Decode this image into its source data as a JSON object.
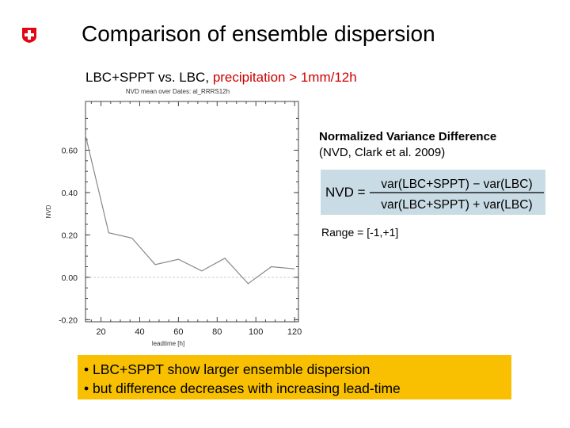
{
  "header": {
    "title": "Comparison of ensemble dispersion",
    "subtitle_black": "LBC+SPPT vs. LBC",
    "subtitle_sep": ",",
    "subtitle_red": "precipitation > 1mm/12h"
  },
  "colors": {
    "logo_red": "#e30613",
    "subtitle_red": "#cc0000",
    "formula_bg": "#c9dbe4",
    "bullet_bg": "#f8c000"
  },
  "nvd_info": {
    "heading": "Normalized Variance Difference",
    "reference": "(NVD, Clark et al. 2009)",
    "formula_lhs": "NVD =",
    "numerator": "var(LBC+SPPT) − var(LBC)",
    "denominator": "var(LBC+SPPT) + var(LBC)",
    "range": "Range = [-1,+1]"
  },
  "bullets": [
    "• LBC+SPPT show larger ensemble dispersion",
    "• but difference decreases with increasing lead-time"
  ],
  "chart_data": {
    "type": "line",
    "title": "NVD mean over Dates: al_RRRS12h",
    "xlabel": "leadtime [h]",
    "ylabel": "NVD",
    "xlim": [
      12,
      122
    ],
    "ylim": [
      -0.21,
      0.83
    ],
    "xticks": [
      20,
      40,
      60,
      80,
      100,
      120
    ],
    "xtick_labels": [
      "20",
      "40",
      "60",
      "80",
      "100",
      "120"
    ],
    "yticks": [
      -0.2,
      0.0,
      0.2,
      0.4,
      0.6
    ],
    "ytick_labels": [
      "-0.20",
      "0.00",
      "0.20",
      "0.40",
      "0.60"
    ],
    "zero_line": true,
    "series": [
      {
        "name": "NVD",
        "x": [
          12,
          24,
          36,
          48,
          60,
          72,
          84,
          96,
          108,
          120
        ],
        "y": [
          0.67,
          0.21,
          0.185,
          0.06,
          0.085,
          0.03,
          0.09,
          -0.03,
          0.05,
          0.04
        ]
      }
    ]
  }
}
